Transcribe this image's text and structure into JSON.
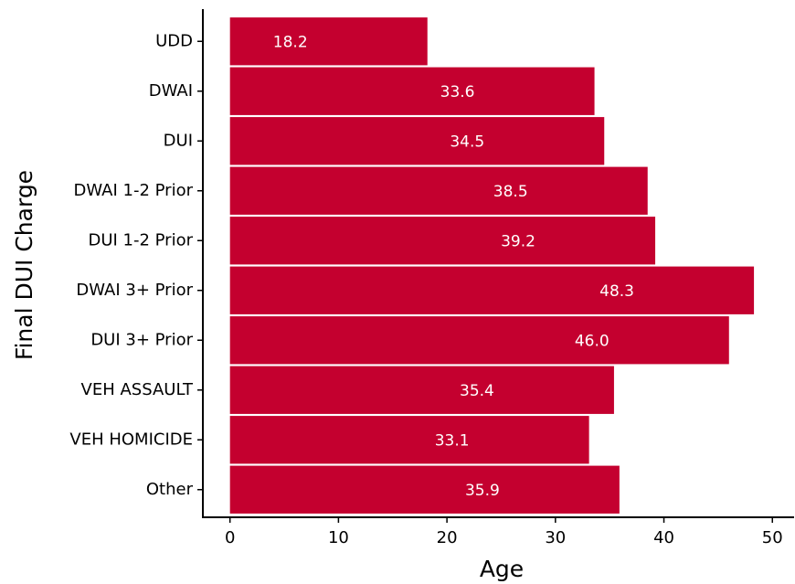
{
  "chart_data": {
    "type": "bar",
    "orientation": "horizontal",
    "x_label": "Age",
    "y_label": "Final DUI Charge",
    "categories": [
      "UDD",
      "DWAI",
      "DUI",
      "DWAI 1-2 Prior",
      "DUI 1-2 Prior",
      "DWAI 3+ Prior",
      "DUI 3+ Prior",
      "VEH ASSAULT",
      "VEH HOMICIDE",
      "Other"
    ],
    "values": [
      18.2,
      33.6,
      34.5,
      38.5,
      39.2,
      48.3,
      46,
      35.4,
      33.1,
      35.9
    ],
    "value_labels": [
      "18.2",
      "33.6",
      "34.5",
      "38.5",
      "39.2",
      "48.3",
      "46.0",
      "35.4",
      "33.1",
      "35.9"
    ],
    "color": "#c4002f",
    "xlim": [
      -2.5,
      52
    ],
    "xticks": [
      0,
      10,
      20,
      30,
      40,
      50
    ],
    "grid": false
  }
}
